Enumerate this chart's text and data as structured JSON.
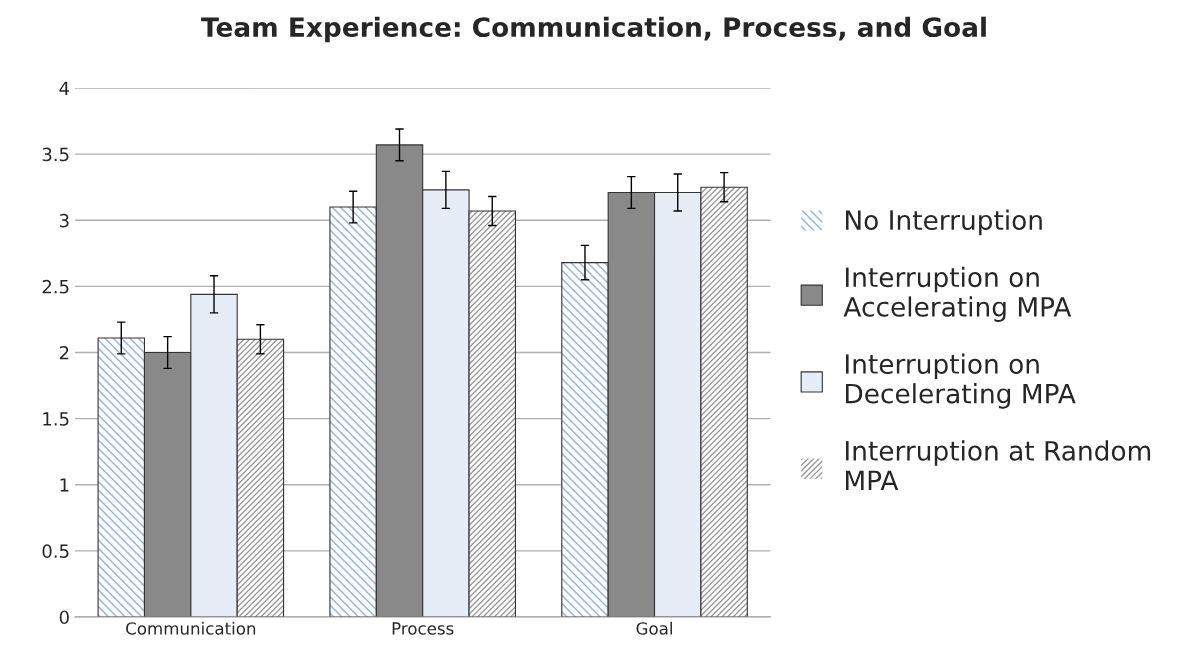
{
  "chart_data": {
    "type": "bar",
    "title": "Team Experience: Communication, Process, and Goal",
    "categories": [
      "Communication",
      "Process",
      "Goal"
    ],
    "series": [
      {
        "name": "No Interruption",
        "color": "#8eb4e3",
        "values": [
          2.11,
          3.1,
          2.68
        ],
        "errors": [
          0.12,
          0.12,
          0.13
        ]
      },
      {
        "name": "Interruption on\nAccelerating MPA",
        "color": "#898989",
        "values": [
          2.0,
          3.57,
          3.21
        ],
        "errors": [
          0.12,
          0.12,
          0.12
        ]
      },
      {
        "name": "Interruption on\nDecelerating MPA",
        "color": "#e6edf7",
        "values": [
          2.44,
          3.23,
          3.21
        ],
        "errors": [
          0.14,
          0.14,
          0.14
        ]
      },
      {
        "name": "Interruption at Random\nMPA",
        "color": "#9a9a9a",
        "values": [
          2.1,
          3.07,
          3.25
        ],
        "errors": [
          0.11,
          0.11,
          0.11
        ]
      }
    ],
    "ylim": [
      0,
      4
    ],
    "yticks": [
      0,
      0.5,
      1,
      1.5,
      2,
      2.5,
      3,
      3.5,
      4
    ],
    "grid": "y",
    "legend": "right"
  }
}
